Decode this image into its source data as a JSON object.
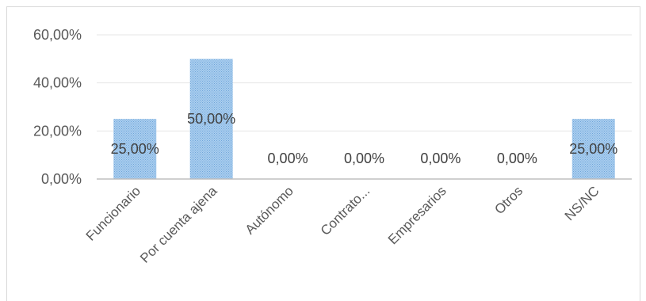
{
  "chart_data": {
    "type": "bar",
    "categories": [
      "Funcionario",
      "Por cuenta ajena",
      "Autónomo",
      "Contrato...",
      "Empresarios",
      "Otros",
      "NS/NC"
    ],
    "values": [
      25,
      50,
      0,
      0,
      0,
      0,
      25
    ],
    "data_labels": [
      "25,00%",
      "50,00%",
      "0,00%",
      "0,00%",
      "0,00%",
      "0,00%",
      "25,00%"
    ],
    "y_ticks": [
      {
        "value": 0,
        "label": "0,00%"
      },
      {
        "value": 20,
        "label": "20,00%"
      },
      {
        "value": 40,
        "label": "40,00%"
      },
      {
        "value": 60,
        "label": "60,00%"
      }
    ],
    "ylim": [
      0,
      60
    ],
    "title": "",
    "xlabel": "",
    "ylabel": "",
    "grid": true,
    "legend": "none",
    "colors": {
      "bar_fill": "#9dc3e6",
      "bar_pattern": "#5b9bd5",
      "gridline": "#e6e6e6",
      "axis": "#bfbfbf"
    }
  }
}
